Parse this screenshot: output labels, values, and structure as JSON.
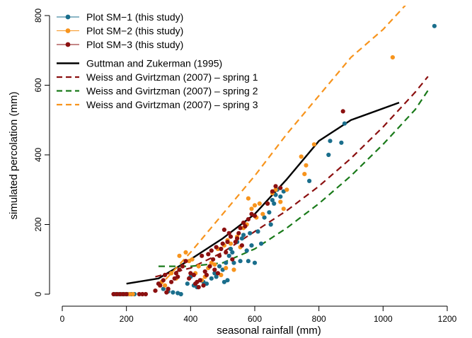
{
  "chart_data": {
    "type": "scatter",
    "xlabel": "seasonal rainfall (mm)",
    "ylabel": "simulated percolation (mm)",
    "xlim": [
      0,
      1200
    ],
    "ylim": [
      0,
      800
    ],
    "xticks": [
      0,
      200,
      400,
      600,
      800,
      1000,
      1200
    ],
    "yticks": [
      0,
      200,
      400,
      600,
      800
    ],
    "legend_position": "top-left",
    "series": [
      {
        "name": "Plot SM−1 (this study)",
        "kind": "points",
        "color": "#1a6e8c",
        "points": [
          [
            165,
            0
          ],
          [
            175,
            0
          ],
          [
            185,
            0
          ],
          [
            195,
            0
          ],
          [
            205,
            0
          ],
          [
            215,
            0
          ],
          [
            225,
            0
          ],
          [
            300,
            30
          ],
          [
            315,
            15
          ],
          [
            330,
            8
          ],
          [
            345,
            5
          ],
          [
            360,
            3
          ],
          [
            370,
            0
          ],
          [
            390,
            30
          ],
          [
            400,
            50
          ],
          [
            410,
            25
          ],
          [
            420,
            20
          ],
          [
            430,
            40
          ],
          [
            440,
            35
          ],
          [
            450,
            30
          ],
          [
            465,
            45
          ],
          [
            475,
            60
          ],
          [
            480,
            50
          ],
          [
            490,
            80
          ],
          [
            500,
            70
          ],
          [
            505,
            35
          ],
          [
            510,
            90
          ],
          [
            515,
            40
          ],
          [
            520,
            110
          ],
          [
            525,
            130
          ],
          [
            530,
            120
          ],
          [
            535,
            90
          ],
          [
            545,
            150
          ],
          [
            555,
            95
          ],
          [
            560,
            160
          ],
          [
            565,
            170
          ],
          [
            575,
            125
          ],
          [
            580,
            95
          ],
          [
            585,
            175
          ],
          [
            590,
            140
          ],
          [
            600,
            90
          ],
          [
            610,
            180
          ],
          [
            620,
            145
          ],
          [
            630,
            220
          ],
          [
            645,
            235
          ],
          [
            650,
            200
          ],
          [
            655,
            270
          ],
          [
            660,
            260
          ],
          [
            665,
            285
          ],
          [
            670,
            300
          ],
          [
            680,
            280
          ],
          [
            690,
            295
          ],
          [
            770,
            325
          ],
          [
            830,
            400
          ],
          [
            835,
            440
          ],
          [
            870,
            435
          ],
          [
            880,
            490
          ],
          [
            1160,
            770
          ]
        ]
      },
      {
        "name": "Plot SM−2 (this study)",
        "kind": "points",
        "color": "#f7941d",
        "points": [
          [
            170,
            0
          ],
          [
            180,
            0
          ],
          [
            190,
            0
          ],
          [
            200,
            0
          ],
          [
            210,
            0
          ],
          [
            220,
            0
          ],
          [
            310,
            35
          ],
          [
            320,
            25
          ],
          [
            330,
            15
          ],
          [
            340,
            60
          ],
          [
            355,
            45
          ],
          [
            365,
            110
          ],
          [
            375,
            80
          ],
          [
            385,
            120
          ],
          [
            395,
            95
          ],
          [
            405,
            100
          ],
          [
            415,
            60
          ],
          [
            425,
            80
          ],
          [
            435,
            40
          ],
          [
            445,
            50
          ],
          [
            455,
            75
          ],
          [
            465,
            90
          ],
          [
            475,
            85
          ],
          [
            485,
            130
          ],
          [
            495,
            55
          ],
          [
            505,
            140
          ],
          [
            510,
            75
          ],
          [
            515,
            155
          ],
          [
            525,
            145
          ],
          [
            535,
            70
          ],
          [
            545,
            165
          ],
          [
            555,
            135
          ],
          [
            565,
            190
          ],
          [
            575,
            200
          ],
          [
            580,
            275
          ],
          [
            590,
            245
          ],
          [
            600,
            255
          ],
          [
            605,
            220
          ],
          [
            615,
            260
          ],
          [
            625,
            230
          ],
          [
            640,
            260
          ],
          [
            655,
            290
          ],
          [
            665,
            300
          ],
          [
            680,
            265
          ],
          [
            690,
            245
          ],
          [
            700,
            300
          ],
          [
            745,
            395
          ],
          [
            755,
            345
          ],
          [
            760,
            370
          ],
          [
            785,
            430
          ],
          [
            1030,
            680
          ]
        ]
      },
      {
        "name": "Plot SM−3 (this study)",
        "kind": "points",
        "color": "#8b1010",
        "points": [
          [
            160,
            0
          ],
          [
            170,
            0
          ],
          [
            180,
            0
          ],
          [
            190,
            0
          ],
          [
            200,
            0
          ],
          [
            240,
            0
          ],
          [
            250,
            0
          ],
          [
            260,
            0
          ],
          [
            290,
            10
          ],
          [
            300,
            30
          ],
          [
            305,
            25
          ],
          [
            315,
            40
          ],
          [
            320,
            55
          ],
          [
            325,
            5
          ],
          [
            330,
            15
          ],
          [
            340,
            35
          ],
          [
            350,
            45
          ],
          [
            355,
            60
          ],
          [
            360,
            50
          ],
          [
            365,
            70
          ],
          [
            375,
            80
          ],
          [
            385,
            95
          ],
          [
            395,
            45
          ],
          [
            400,
            60
          ],
          [
            410,
            55
          ],
          [
            415,
            30
          ],
          [
            420,
            35
          ],
          [
            425,
            20
          ],
          [
            430,
            40
          ],
          [
            435,
            110
          ],
          [
            440,
            25
          ],
          [
            445,
            65
          ],
          [
            450,
            55
          ],
          [
            455,
            115
          ],
          [
            460,
            80
          ],
          [
            465,
            125
          ],
          [
            470,
            100
          ],
          [
            475,
            70
          ],
          [
            480,
            135
          ],
          [
            485,
            60
          ],
          [
            490,
            110
          ],
          [
            495,
            130
          ],
          [
            500,
            145
          ],
          [
            505,
            185
          ],
          [
            510,
            120
          ],
          [
            515,
            150
          ],
          [
            520,
            175
          ],
          [
            525,
            165
          ],
          [
            530,
            100
          ],
          [
            540,
            150
          ],
          [
            545,
            160
          ],
          [
            550,
            175
          ],
          [
            555,
            190
          ],
          [
            560,
            140
          ],
          [
            565,
            205
          ],
          [
            570,
            195
          ],
          [
            580,
            215
          ],
          [
            590,
            230
          ],
          [
            600,
            225
          ],
          [
            640,
            260
          ],
          [
            655,
            295
          ],
          [
            665,
            310
          ],
          [
            680,
            305
          ],
          [
            875,
            525
          ]
        ]
      },
      {
        "name": "Guttman and Zukerman (1995)",
        "kind": "line",
        "color": "#000000",
        "dash": "solid",
        "points": [
          [
            200,
            30
          ],
          [
            300,
            45
          ],
          [
            400,
            100
          ],
          [
            500,
            160
          ],
          [
            600,
            230
          ],
          [
            700,
            330
          ],
          [
            800,
            440
          ],
          [
            900,
            500
          ],
          [
            1050,
            550
          ]
        ]
      },
      {
        "name": "Weiss and Gvirtzman (2007) – spring 1",
        "kind": "line",
        "color": "#8b1010",
        "dash": "dashed",
        "points": [
          [
            290,
            50
          ],
          [
            400,
            75
          ],
          [
            500,
            120
          ],
          [
            600,
            180
          ],
          [
            700,
            240
          ],
          [
            800,
            310
          ],
          [
            900,
            390
          ],
          [
            1000,
            480
          ],
          [
            1100,
            580
          ],
          [
            1140,
            625
          ]
        ]
      },
      {
        "name": "Weiss and Gvirtzman (2007) – spring 2",
        "kind": "line",
        "color": "#1a7a1a",
        "dash": "dashed",
        "points": [
          [
            300,
            80
          ],
          [
            400,
            80
          ],
          [
            500,
            90
          ],
          [
            600,
            130
          ],
          [
            700,
            190
          ],
          [
            800,
            260
          ],
          [
            900,
            340
          ],
          [
            1000,
            430
          ],
          [
            1100,
            530
          ],
          [
            1140,
            585
          ]
        ]
      },
      {
        "name": "Weiss and Gvirtzman (2007) – spring 3",
        "kind": "line",
        "color": "#f7941d",
        "dash": "dashed",
        "points": [
          [
            300,
            20
          ],
          [
            400,
            120
          ],
          [
            500,
            230
          ],
          [
            600,
            340
          ],
          [
            700,
            460
          ],
          [
            800,
            570
          ],
          [
            900,
            680
          ],
          [
            1000,
            760
          ],
          [
            1070,
            830
          ]
        ]
      }
    ]
  }
}
